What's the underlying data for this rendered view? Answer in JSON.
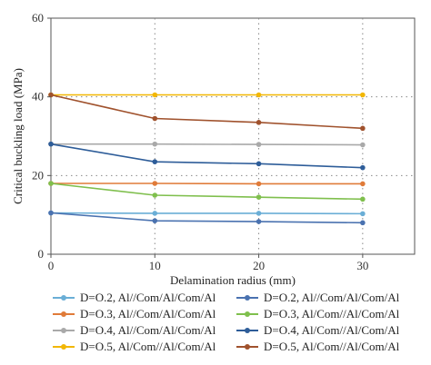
{
  "chart_data": {
    "type": "line",
    "xlabel": "Delamination radius (mm)",
    "ylabel": "Critical buckling load (MPa)",
    "x": [
      0,
      10,
      20,
      30
    ],
    "xlim": [
      0,
      35
    ],
    "ylim": [
      0,
      60
    ],
    "x_ticks": [
      "0",
      "10",
      "20",
      "30"
    ],
    "y_ticks": [
      "0",
      "20",
      "40",
      "60"
    ],
    "grid": "dotted reference lines at x = 10, 20, 30 and y = 20, 40",
    "legend_position": "bottom, two columns",
    "series": [
      {
        "name": "D=O.2, Al//Com/Al/Com/Al",
        "color": "#6aaed6",
        "values": [
          10.5,
          10.4,
          10.4,
          10.3
        ]
      },
      {
        "name": "D=O.3, Al//Com/Al/Com/Al",
        "color": "#e07b39",
        "values": [
          18.0,
          18.0,
          17.9,
          17.9
        ]
      },
      {
        "name": "D=O.4, Al//Com/Al/Com/Al",
        "color": "#a9a9a9",
        "values": [
          28.0,
          28.0,
          27.9,
          27.8
        ]
      },
      {
        "name": "D=O.5, Al/Com//Al/Com/Al",
        "color": "#f2b705",
        "values": [
          40.5,
          40.5,
          40.5,
          40.5
        ]
      },
      {
        "name": "D=O.2, Al//Com/Al/Com/Al",
        "color": "#4a72b0",
        "values": [
          10.5,
          8.5,
          8.3,
          8.0
        ]
      },
      {
        "name": "D=O.3, Al/Com//Al/Com/Al",
        "color": "#7fbf4d",
        "values": [
          18.0,
          15.0,
          14.5,
          14.0
        ]
      },
      {
        "name": "D=O.4, Al/Com//Al/Com/Al",
        "color": "#2e5d99",
        "values": [
          28.0,
          23.5,
          23.0,
          22.0
        ]
      },
      {
        "name": "D=O.5, Al/Com//Al/Com/Al",
        "color": "#a0522d",
        "values": [
          40.5,
          34.5,
          33.5,
          32.0
        ]
      }
    ]
  }
}
